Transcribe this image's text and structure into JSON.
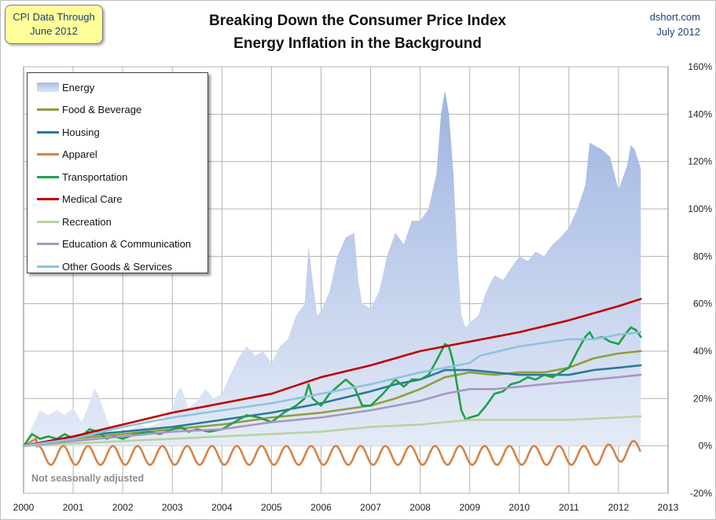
{
  "callout": {
    "line1": "CPI Data Through",
    "line2": "June 2012"
  },
  "title": {
    "line1": "Breaking Down the Consumer Price Index",
    "line2": "Energy Inflation in the Background"
  },
  "source": {
    "line1": "dshort.com",
    "line2": "July 2012"
  },
  "note": "Not seasonally adjusted",
  "chart_data": {
    "type": "line",
    "title": "Breaking Down the Consumer Price Index — Energy Inflation in the Background",
    "xlim": [
      2000,
      2013
    ],
    "x_ticks": [
      "2000",
      "2001",
      "2002",
      "2003",
      "2004",
      "2005",
      "2006",
      "2007",
      "2008",
      "2009",
      "2010",
      "2011",
      "2012",
      "2013"
    ],
    "ylim": [
      -20,
      160
    ],
    "y_ticks": [
      "-20%",
      "0%",
      "20%",
      "40%",
      "60%",
      "80%",
      "100%",
      "120%",
      "140%",
      "160%"
    ],
    "grid": true,
    "legend_position": "top-left",
    "series": [
      {
        "name": "Energy",
        "kind": "area",
        "color": "#a9bde3",
        "points": [
          [
            2000.0,
            0
          ],
          [
            2000.17,
            8
          ],
          [
            2000.33,
            15
          ],
          [
            2000.5,
            13
          ],
          [
            2000.67,
            15
          ],
          [
            2000.83,
            13
          ],
          [
            2001.0,
            16
          ],
          [
            2001.17,
            10
          ],
          [
            2001.33,
            18
          ],
          [
            2001.42,
            24
          ],
          [
            2001.5,
            22
          ],
          [
            2001.67,
            12
          ],
          [
            2001.83,
            5
          ],
          [
            2002.0,
            3
          ],
          [
            2002.17,
            7
          ],
          [
            2002.33,
            9
          ],
          [
            2002.5,
            8
          ],
          [
            2002.75,
            10
          ],
          [
            2003.0,
            15
          ],
          [
            2003.08,
            22
          ],
          [
            2003.17,
            25
          ],
          [
            2003.33,
            16
          ],
          [
            2003.5,
            19
          ],
          [
            2003.67,
            24
          ],
          [
            2003.83,
            20
          ],
          [
            2004.0,
            22
          ],
          [
            2004.17,
            30
          ],
          [
            2004.33,
            37
          ],
          [
            2004.5,
            42
          ],
          [
            2004.67,
            38
          ],
          [
            2004.83,
            40
          ],
          [
            2005.0,
            35
          ],
          [
            2005.17,
            42
          ],
          [
            2005.33,
            45
          ],
          [
            2005.5,
            55
          ],
          [
            2005.67,
            60
          ],
          [
            2005.75,
            84
          ],
          [
            2005.83,
            70
          ],
          [
            2005.92,
            55
          ],
          [
            2006.0,
            57
          ],
          [
            2006.17,
            65
          ],
          [
            2006.33,
            80
          ],
          [
            2006.5,
            88
          ],
          [
            2006.67,
            90
          ],
          [
            2006.75,
            70
          ],
          [
            2006.83,
            60
          ],
          [
            2007.0,
            58
          ],
          [
            2007.17,
            65
          ],
          [
            2007.33,
            80
          ],
          [
            2007.5,
            90
          ],
          [
            2007.67,
            85
          ],
          [
            2007.83,
            95
          ],
          [
            2008.0,
            95
          ],
          [
            2008.17,
            100
          ],
          [
            2008.33,
            115
          ],
          [
            2008.42,
            140
          ],
          [
            2008.5,
            150
          ],
          [
            2008.58,
            140
          ],
          [
            2008.67,
            115
          ],
          [
            2008.75,
            80
          ],
          [
            2008.83,
            55
          ],
          [
            2008.92,
            50
          ],
          [
            2009.0,
            52
          ],
          [
            2009.17,
            55
          ],
          [
            2009.33,
            65
          ],
          [
            2009.5,
            72
          ],
          [
            2009.67,
            70
          ],
          [
            2009.83,
            75
          ],
          [
            2010.0,
            80
          ],
          [
            2010.17,
            78
          ],
          [
            2010.33,
            82
          ],
          [
            2010.5,
            80
          ],
          [
            2010.67,
            85
          ],
          [
            2010.83,
            88
          ],
          [
            2011.0,
            92
          ],
          [
            2011.17,
            100
          ],
          [
            2011.33,
            110
          ],
          [
            2011.42,
            128
          ],
          [
            2011.5,
            127
          ],
          [
            2011.67,
            125
          ],
          [
            2011.83,
            122
          ],
          [
            2012.0,
            108
          ],
          [
            2012.17,
            118
          ],
          [
            2012.25,
            127
          ],
          [
            2012.33,
            125
          ],
          [
            2012.45,
            117
          ]
        ]
      },
      {
        "name": "Food & Beverage",
        "kind": "line",
        "color": "#8f9e3e",
        "points": [
          [
            2000,
            0
          ],
          [
            2001,
            3
          ],
          [
            2002,
            5
          ],
          [
            2003,
            7
          ],
          [
            2004,
            9
          ],
          [
            2005,
            12
          ],
          [
            2006,
            14
          ],
          [
            2007,
            17
          ],
          [
            2007.5,
            20
          ],
          [
            2008,
            24
          ],
          [
            2008.5,
            29
          ],
          [
            2009,
            31
          ],
          [
            2009.5,
            30
          ],
          [
            2010,
            31
          ],
          [
            2010.5,
            31
          ],
          [
            2011,
            33
          ],
          [
            2011.5,
            37
          ],
          [
            2012,
            39
          ],
          [
            2012.45,
            40
          ]
        ]
      },
      {
        "name": "Housing",
        "kind": "line",
        "color": "#2b7a9a",
        "points": [
          [
            2000,
            0
          ],
          [
            2001,
            4
          ],
          [
            2002,
            6
          ],
          [
            2003,
            8
          ],
          [
            2004,
            11
          ],
          [
            2005,
            14
          ],
          [
            2006,
            18
          ],
          [
            2007,
            23
          ],
          [
            2007.5,
            26
          ],
          [
            2008,
            28
          ],
          [
            2008.5,
            32
          ],
          [
            2009,
            32
          ],
          [
            2009.5,
            31
          ],
          [
            2010,
            30
          ],
          [
            2010.5,
            30
          ],
          [
            2011,
            30
          ],
          [
            2011.5,
            32
          ],
          [
            2012,
            33
          ],
          [
            2012.45,
            34
          ]
        ]
      },
      {
        "name": "Apparel",
        "kind": "line",
        "color": "#d4844a",
        "points": [
          [
            2000,
            0
          ],
          [
            2012.45,
            -1
          ]
        ]
      },
      {
        "name": "Transportation",
        "kind": "line",
        "color": "#1ea04a",
        "points": [
          [
            2000,
            0
          ],
          [
            2000.17,
            5
          ],
          [
            2000.33,
            3
          ],
          [
            2000.5,
            4
          ],
          [
            2000.67,
            3
          ],
          [
            2000.83,
            5
          ],
          [
            2001.0,
            3
          ],
          [
            2001.17,
            4
          ],
          [
            2001.33,
            7
          ],
          [
            2001.5,
            6
          ],
          [
            2001.67,
            3
          ],
          [
            2001.83,
            4
          ],
          [
            2002.0,
            3
          ],
          [
            2002.25,
            5
          ],
          [
            2002.5,
            6
          ],
          [
            2002.75,
            5
          ],
          [
            2003.0,
            7
          ],
          [
            2003.17,
            8
          ],
          [
            2003.33,
            6
          ],
          [
            2003.5,
            7
          ],
          [
            2003.75,
            6
          ],
          [
            2004.0,
            7
          ],
          [
            2004.25,
            10
          ],
          [
            2004.5,
            13
          ],
          [
            2004.75,
            12
          ],
          [
            2005.0,
            10
          ],
          [
            2005.25,
            14
          ],
          [
            2005.5,
            17
          ],
          [
            2005.67,
            20
          ],
          [
            2005.75,
            26
          ],
          [
            2005.83,
            20
          ],
          [
            2006.0,
            17
          ],
          [
            2006.17,
            22
          ],
          [
            2006.33,
            25
          ],
          [
            2006.5,
            28
          ],
          [
            2006.67,
            25
          ],
          [
            2006.83,
            17
          ],
          [
            2007.0,
            17
          ],
          [
            2007.25,
            22
          ],
          [
            2007.5,
            28
          ],
          [
            2007.67,
            25
          ],
          [
            2007.83,
            28
          ],
          [
            2008.0,
            28
          ],
          [
            2008.17,
            30
          ],
          [
            2008.33,
            36
          ],
          [
            2008.5,
            43
          ],
          [
            2008.58,
            42
          ],
          [
            2008.67,
            35
          ],
          [
            2008.75,
            25
          ],
          [
            2008.83,
            15
          ],
          [
            2008.92,
            11
          ],
          [
            2009.0,
            12
          ],
          [
            2009.17,
            13
          ],
          [
            2009.33,
            17
          ],
          [
            2009.5,
            22
          ],
          [
            2009.67,
            23
          ],
          [
            2009.83,
            26
          ],
          [
            2010.0,
            27
          ],
          [
            2010.17,
            29
          ],
          [
            2010.33,
            28
          ],
          [
            2010.5,
            30
          ],
          [
            2010.67,
            29
          ],
          [
            2010.83,
            31
          ],
          [
            2011.0,
            33
          ],
          [
            2011.17,
            40
          ],
          [
            2011.33,
            46
          ],
          [
            2011.42,
            48
          ],
          [
            2011.5,
            45
          ],
          [
            2011.67,
            46
          ],
          [
            2011.83,
            44
          ],
          [
            2012.0,
            43
          ],
          [
            2012.17,
            48
          ],
          [
            2012.25,
            50
          ],
          [
            2012.35,
            49
          ],
          [
            2012.45,
            46
          ]
        ]
      },
      {
        "name": "Medical Care",
        "kind": "line",
        "color": "#c00000",
        "points": [
          [
            2000,
            0
          ],
          [
            2001,
            4
          ],
          [
            2002,
            9
          ],
          [
            2003,
            14
          ],
          [
            2004,
            18
          ],
          [
            2005,
            22
          ],
          [
            2006,
            29
          ],
          [
            2007,
            34
          ],
          [
            2008,
            40
          ],
          [
            2009,
            44
          ],
          [
            2010,
            48
          ],
          [
            2011,
            53
          ],
          [
            2012,
            59
          ],
          [
            2012.45,
            62
          ]
        ]
      },
      {
        "name": "Recreation",
        "kind": "line",
        "color": "#b7d3a0",
        "points": [
          [
            2000,
            0
          ],
          [
            2001,
            1
          ],
          [
            2002,
            2
          ],
          [
            2003,
            3
          ],
          [
            2004,
            4
          ],
          [
            2005,
            5
          ],
          [
            2006,
            6
          ],
          [
            2007,
            8
          ],
          [
            2008,
            9
          ],
          [
            2009,
            11
          ],
          [
            2010,
            11
          ],
          [
            2011,
            11
          ],
          [
            2012,
            12
          ],
          [
            2012.45,
            12.5
          ]
        ]
      },
      {
        "name": "Education & Communication",
        "kind": "line",
        "color": "#a696c4",
        "points": [
          [
            2000,
            0
          ],
          [
            2001,
            2
          ],
          [
            2002,
            4
          ],
          [
            2003,
            6
          ],
          [
            2004,
            7
          ],
          [
            2005,
            10
          ],
          [
            2006,
            12
          ],
          [
            2007,
            15
          ],
          [
            2008,
            19
          ],
          [
            2008.5,
            22
          ],
          [
            2009,
            24
          ],
          [
            2009.5,
            24
          ],
          [
            2010,
            25
          ],
          [
            2010.5,
            26
          ],
          [
            2011,
            27
          ],
          [
            2011.5,
            28
          ],
          [
            2012,
            29
          ],
          [
            2012.45,
            30
          ]
        ]
      },
      {
        "name": "Other Goods & Services",
        "kind": "line",
        "color": "#8fc2de",
        "points": [
          [
            2000,
            0
          ],
          [
            2001,
            3
          ],
          [
            2002,
            8
          ],
          [
            2003,
            12
          ],
          [
            2004,
            15
          ],
          [
            2005,
            18
          ],
          [
            2006,
            22
          ],
          [
            2007,
            26
          ],
          [
            2008,
            31
          ],
          [
            2009,
            35
          ],
          [
            2009.2,
            38
          ],
          [
            2010,
            42
          ],
          [
            2011,
            45
          ],
          [
            2011.5,
            45
          ],
          [
            2012,
            47
          ],
          [
            2012.45,
            48
          ]
        ]
      }
    ]
  }
}
